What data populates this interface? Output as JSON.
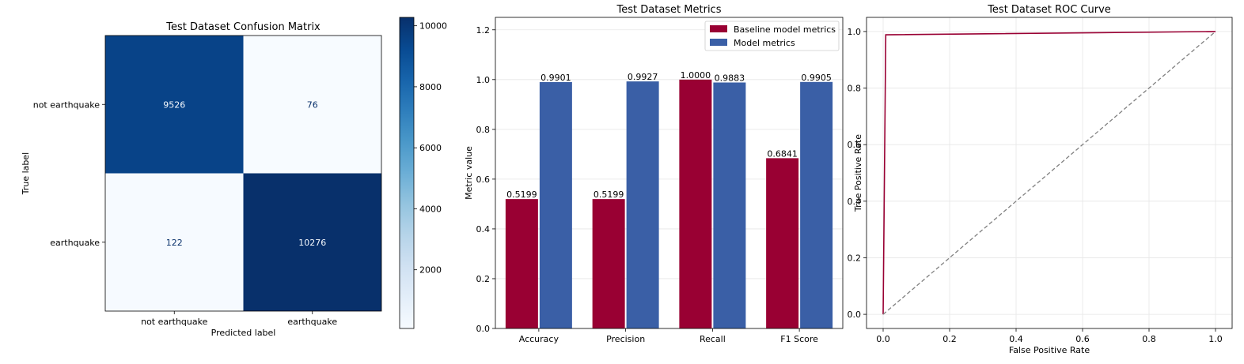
{
  "chart_data": [
    {
      "type": "heatmap",
      "title": "Test Dataset Confusion Matrix",
      "xlabel": "Predicted label",
      "ylabel": "True label",
      "x_categories": [
        "not earthquake",
        "earthquake"
      ],
      "y_categories": [
        "not earthquake",
        "earthquake"
      ],
      "values": [
        [
          9526,
          76
        ],
        [
          122,
          10276
        ]
      ],
      "colormap": "Blues",
      "colorbar": {
        "min": 76,
        "max": 10276,
        "ticks": [
          2000,
          4000,
          6000,
          8000,
          10000
        ]
      }
    },
    {
      "type": "bar",
      "title": "Test Dataset Metrics",
      "ylabel": "Metric value",
      "categories": [
        "Accuracy",
        "Precision",
        "Recall",
        "F1 Score"
      ],
      "series": [
        {
          "name": "Baseline model metrics",
          "color": "#990033",
          "values": [
            0.5199,
            0.5199,
            1.0,
            0.6841
          ],
          "labels": [
            "0.5199",
            "0.5199",
            "1.0000",
            "0.6841"
          ]
        },
        {
          "name": "Model metrics",
          "color": "#3A5FA6",
          "values": [
            0.9901,
            0.9927,
            0.9883,
            0.9905
          ],
          "labels": [
            "0.9901",
            "0.9927",
            "0.9883",
            "0.9905"
          ]
        }
      ],
      "ylim": [
        0,
        1.25
      ],
      "yticks": [
        "0.0",
        "0.2",
        "0.4",
        "0.6",
        "0.8",
        "1.0",
        "1.2"
      ],
      "legend": "top-right",
      "grid": true
    },
    {
      "type": "line",
      "title": "Test Dataset ROC Curve",
      "xlabel": "False Positive Rate",
      "ylabel": "True Positive Rate",
      "xlim": [
        -0.05,
        1.05
      ],
      "ylim": [
        -0.05,
        1.05
      ],
      "xticks": [
        "0.0",
        "0.2",
        "0.4",
        "0.6",
        "0.8",
        "1.0"
      ],
      "yticks": [
        "0.0",
        "0.2",
        "0.4",
        "0.6",
        "0.8",
        "1.0"
      ],
      "series": [
        {
          "kind": "roc",
          "color": "#990033",
          "x": [
            0.0,
            0.0079,
            1.0
          ],
          "y": [
            0.0,
            0.9883,
            1.0
          ]
        },
        {
          "kind": "chance",
          "color": "#808080",
          "dashed": true,
          "x": [
            0.0,
            1.0
          ],
          "y": [
            0.0,
            1.0
          ]
        }
      ],
      "grid": true
    }
  ]
}
